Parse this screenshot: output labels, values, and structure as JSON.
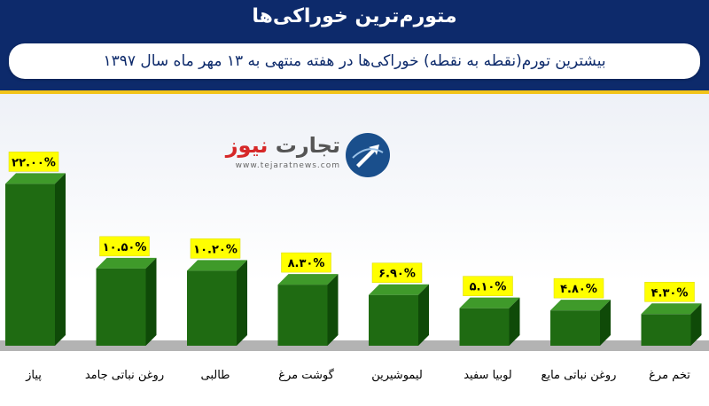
{
  "header": {
    "title": "متورم‌ترین خوراکی‌ها",
    "subtitle": "بیشترین تورم(نقطه به نقطه) خوراکی‌ها در هفته منتهی به ۱۳ مهر ماه سال ۱۳۹۷"
  },
  "logo": {
    "name_prefix": "تجارت",
    "name_accent": "نیوز",
    "url": "www.tejaratnews.com",
    "icon": "globe-arrow-icon"
  },
  "colors": {
    "header_bg": "#0d2a6b",
    "accent_bar": "#f2c41a",
    "bar_front": "#1f6b12",
    "bar_top": "#3f9a2a",
    "bar_side": "#0f4a08",
    "label_bg": "#ffff00",
    "floor": "#b3b3b3"
  },
  "chart_data": {
    "type": "bar",
    "title": "متورم‌ترین خوراکی‌ها",
    "subtitle": "بیشترین تورم(نقطه به نقطه) خوراکی‌ها در هفته منتهی به ۱۳ مهر ماه سال ۱۳۹۷",
    "categories": [
      "پیاز",
      "روغن نباتی جامد",
      "طالبی",
      "گوشت مرغ",
      "لیموشیرین",
      "لوبیا سفید",
      "روغن نباتی مایع",
      "تخم مرغ"
    ],
    "values": [
      22.0,
      10.5,
      10.2,
      8.3,
      6.9,
      5.1,
      4.8,
      4.3
    ],
    "value_labels": [
      "۲۲.۰۰%",
      "۱۰.۵۰%",
      "۱۰.۲۰%",
      "۸.۳۰%",
      "۶.۹۰%",
      "۵.۱۰%",
      "۴.۸۰%",
      "۴.۳۰%"
    ],
    "xlabel": "",
    "ylabel": "",
    "ylim": [
      0,
      25
    ],
    "grid": false,
    "legend": "none",
    "style": "3d-columns"
  }
}
